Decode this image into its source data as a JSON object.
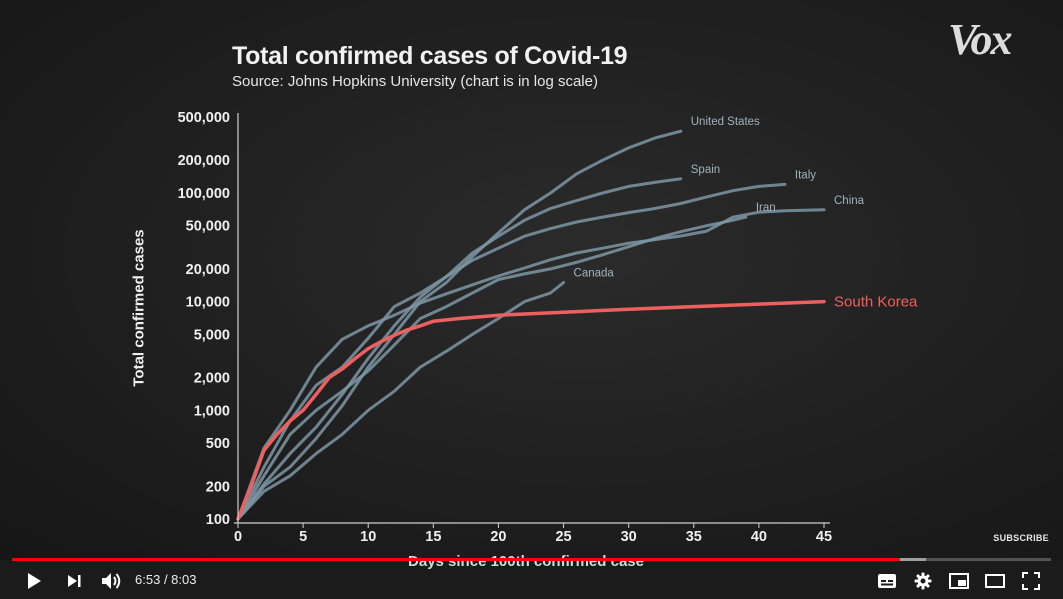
{
  "channel": {
    "logo": "Vox"
  },
  "chart_data": {
    "type": "line",
    "title": "Total confirmed cases of Covid-19",
    "subtitle": "Source: Johns Hopkins University (chart is in log scale)",
    "xlabel": "Days since 100th confirmed case",
    "ylabel": "Total confirmed cases",
    "y_scale": "log",
    "xlim": [
      0,
      45
    ],
    "ylim": [
      100,
      500000
    ],
    "x_ticks": [
      0,
      5,
      10,
      15,
      20,
      25,
      30,
      35,
      40,
      45
    ],
    "y_ticks": [
      {
        "value": 100,
        "label": "100"
      },
      {
        "value": 200,
        "label": "200"
      },
      {
        "value": 500,
        "label": "500"
      },
      {
        "value": 1000,
        "label": "1,000"
      },
      {
        "value": 2000,
        "label": "2,000"
      },
      {
        "value": 5000,
        "label": "5,000"
      },
      {
        "value": 10000,
        "label": "10,000"
      },
      {
        "value": 20000,
        "label": "20,000"
      },
      {
        "value": 50000,
        "label": "50,000"
      },
      {
        "value": 100000,
        "label": "100,000"
      },
      {
        "value": 200000,
        "label": "200,000"
      },
      {
        "value": 500000,
        "label": "500,000"
      }
    ],
    "series": [
      {
        "name": "United States",
        "color": "#7d96a5",
        "highlight": false,
        "x": [
          0,
          2,
          4,
          6,
          8,
          10,
          12,
          14,
          16,
          18,
          20,
          22,
          24,
          26,
          28,
          30,
          32,
          34
        ],
        "y": [
          100,
          200,
          300,
          550,
          1100,
          2500,
          5000,
          10000,
          15000,
          26000,
          43000,
          70000,
          100000,
          150000,
          200000,
          260000,
          320000,
          370000
        ]
      },
      {
        "name": "Spain",
        "color": "#7d96a5",
        "highlight": false,
        "x": [
          0,
          2,
          4,
          6,
          8,
          10,
          12,
          14,
          16,
          18,
          20,
          22,
          24,
          26,
          28,
          30,
          32,
          34
        ],
        "y": [
          100,
          210,
          400,
          700,
          1400,
          3000,
          6000,
          11000,
          17000,
          28000,
          40000,
          56000,
          72000,
          85000,
          100000,
          115000,
          125000,
          135000
        ]
      },
      {
        "name": "Italy",
        "color": "#7d96a5",
        "highlight": false,
        "x": [
          0,
          2,
          4,
          6,
          8,
          10,
          12,
          14,
          16,
          18,
          20,
          22,
          24,
          26,
          28,
          30,
          32,
          34,
          36,
          38,
          40,
          42
        ],
        "y": [
          100,
          300,
          800,
          1700,
          2500,
          4600,
          9000,
          12000,
          17000,
          24000,
          31000,
          40000,
          47000,
          54000,
          60000,
          66000,
          72000,
          80000,
          92000,
          105000,
          115000,
          120000
        ]
      },
      {
        "name": "China",
        "color": "#7d96a5",
        "highlight": false,
        "x": [
          0,
          2,
          4,
          6,
          8,
          10,
          12,
          14,
          16,
          18,
          20,
          22,
          24,
          26,
          28,
          30,
          32,
          34,
          36,
          38,
          40,
          42,
          45
        ],
        "y": [
          100,
          450,
          1000,
          2500,
          4500,
          6000,
          7500,
          9700,
          11800,
          14300,
          17200,
          20400,
          24300,
          28000,
          31000,
          34500,
          37200,
          40200,
          44600,
          59800,
          66500,
          68500,
          70000
        ]
      },
      {
        "name": "Iran",
        "color": "#7d96a5",
        "highlight": false,
        "x": [
          0,
          2,
          4,
          6,
          8,
          10,
          12,
          14,
          16,
          18,
          20,
          22,
          24,
          26,
          28,
          30,
          32,
          34,
          36,
          38,
          39
        ],
        "y": [
          100,
          250,
          600,
          1000,
          1500,
          2300,
          4000,
          7000,
          9000,
          12000,
          16000,
          18000,
          20000,
          23000,
          27000,
          32000,
          38000,
          44000,
          50000,
          56000,
          60000
        ]
      },
      {
        "name": "Canada",
        "color": "#7d96a5",
        "highlight": false,
        "x": [
          0,
          2,
          4,
          6,
          8,
          10,
          12,
          14,
          16,
          18,
          20,
          22,
          24,
          25
        ],
        "y": [
          100,
          180,
          250,
          400,
          600,
          1000,
          1500,
          2500,
          3500,
          5000,
          7000,
          10000,
          12000,
          15000
        ]
      },
      {
        "name": "South Korea",
        "color": "#ee6060",
        "highlight": true,
        "x": [
          0,
          1,
          2,
          3,
          4,
          5,
          6,
          7,
          8,
          9,
          10,
          11,
          12,
          13,
          14,
          15,
          17,
          20,
          25,
          30,
          35,
          40,
          45
        ],
        "y": [
          100,
          200,
          430,
          600,
          800,
          1000,
          1400,
          2000,
          2400,
          3000,
          3700,
          4300,
          4900,
          5500,
          6000,
          6600,
          7000,
          7500,
          8000,
          8500,
          9000,
          9500,
          10000
        ]
      }
    ]
  },
  "player": {
    "time_current": "6:53",
    "time_total": "8:03",
    "played_fraction": 0.855,
    "buffered_fraction": 0.88,
    "subscribe_label": "SUBSCRIBE"
  }
}
